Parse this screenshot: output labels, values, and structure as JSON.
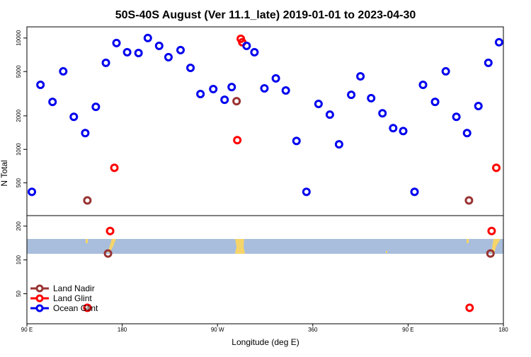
{
  "chart_data": [
    {
      "type": "scatter",
      "title": "50S-40S August (Ver 11.1_late)   2019-01-01 to 2023-04-30",
      "y_label": "N Total",
      "log": true,
      "xlim": [
        90,
        540
      ],
      "ylim": [
        254,
        12600
      ],
      "yticks": [
        500,
        1000,
        2000,
        5000,
        10000
      ],
      "series": [
        {
          "color": "#993333",
          "x": [
            147.1,
            288.0,
            507.5
          ],
          "values": [
            348,
            2710,
            348
          ]
        },
        {
          "color": "#ff0000",
          "x": [
            172.6,
            288.7,
            292.0,
            293.4,
            533.3
          ],
          "values": [
            683,
            1210,
            9850,
            9160,
            683
          ]
        },
        {
          "color": "#0000ee",
          "x": [
            94.7,
            102.8,
            114.2,
            124.3,
            134.3,
            145.1,
            155.1,
            164.6,
            174.6,
            184.7,
            195.4,
            204.2,
            214.9,
            223.7,
            235.1,
            244.5,
            253.9,
            266.0,
            276.7,
            283.4,
            297.5,
            304.9,
            314.3,
            325.1,
            334.5,
            344.6,
            354.0,
            365.4,
            376.1,
            384.8,
            396.3,
            405.0,
            415.1,
            425.8,
            435.9,
            445.4,
            456.1,
            464.1,
            475.5,
            485.6,
            495.6,
            505.7,
            516.4,
            525.8,
            535.9
          ],
          "values": [
            415,
            3800,
            2670,
            5020,
            1960,
            1400,
            2410,
            5990,
            9020,
            7460,
            7330,
            10000,
            8510,
            6730,
            7790,
            5400,
            3140,
            3480,
            2790,
            3630,
            8510,
            7460,
            3530,
            4340,
            3380,
            1190,
            415,
            2560,
            2050,
            1110,
            3090,
            4530,
            2880,
            2110,
            1550,
            1460,
            415,
            3800,
            2670,
            5020,
            1960,
            1400,
            2450,
            5990,
            9160
          ]
        }
      ]
    },
    {
      "type": "scatter",
      "x_label": "Longitude (deg E)",
      "log": true,
      "legend": "bottom-left",
      "xlim": [
        90,
        540
      ],
      "xticks": [
        {
          "value": 90,
          "label": "90 E"
        },
        180,
        {
          "value": 270,
          "label": "90 W"
        },
        360,
        {
          "value": 450,
          "label": "90 E"
        },
        {
          "value": 540,
          "label": "180"
        }
      ],
      "ylim": [
        27,
        248
      ],
      "yticks": [
        50,
        100,
        200
      ],
      "series": [
        {
          "name": "Land Nadir",
          "color": "#993333",
          "x": [
            166.6,
            527.8
          ],
          "values": [
            114,
            114
          ]
        },
        {
          "name": "Land Glint",
          "color": "#ff0000",
          "x": [
            147.1,
            168.6,
            508.1,
            528.9
          ],
          "values": [
            37.5,
            181,
            37.5,
            181
          ]
        },
        {
          "name": "Ocean Glint",
          "color": "#0000ee",
          "x": [],
          "values": []
        }
      ]
    }
  ]
}
